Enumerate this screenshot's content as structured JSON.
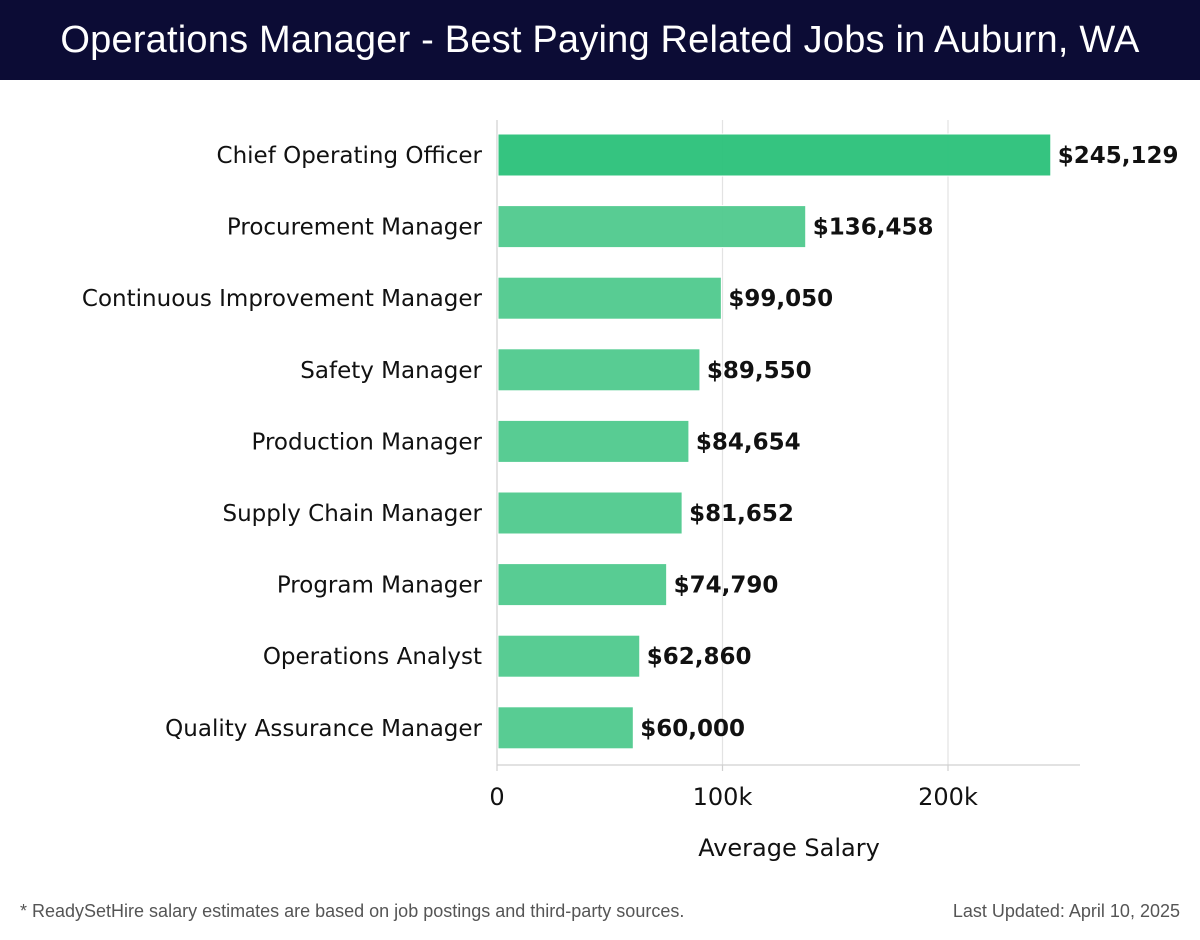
{
  "header": {
    "title": "Operations Manager - Best Paying Related Jobs in Auburn, WA"
  },
  "footer": {
    "note": "* ReadySetHire salary estimates are based on job postings and third-party sources.",
    "updated": "Last Updated: April 10, 2025"
  },
  "colors": {
    "header_bg": "#0c0c35",
    "bar_top": "#2ac179",
    "bar": "#4fc98d",
    "gridline": "#e3e3e3",
    "axis": "#d0d0d0",
    "text": "#111111"
  },
  "chart_data": {
    "type": "bar",
    "orientation": "horizontal",
    "title": "Operations Manager - Best Paying Related Jobs in Auburn, WA",
    "xlabel": "Average Salary",
    "ylabel": "",
    "xlim": [
      0,
      258000
    ],
    "ticks": [
      {
        "value": 0,
        "label": "0"
      },
      {
        "value": 100000,
        "label": "100k"
      },
      {
        "value": 200000,
        "label": "200k"
      }
    ],
    "grid": true,
    "categories": [
      "Chief Operating Officer",
      "Procurement Manager",
      "Continuous Improvement Manager",
      "Safety Manager",
      "Production Manager",
      "Supply Chain Manager",
      "Program Manager",
      "Operations Analyst",
      "Quality Assurance Manager"
    ],
    "values": [
      245129,
      136458,
      99050,
      89550,
      84654,
      81652,
      74790,
      62860,
      60000
    ],
    "value_labels": [
      "$245,129",
      "$136,458",
      "$99,050",
      "$89,550",
      "$84,654",
      "$81,652",
      "$74,790",
      "$62,860",
      "$60,000"
    ]
  }
}
